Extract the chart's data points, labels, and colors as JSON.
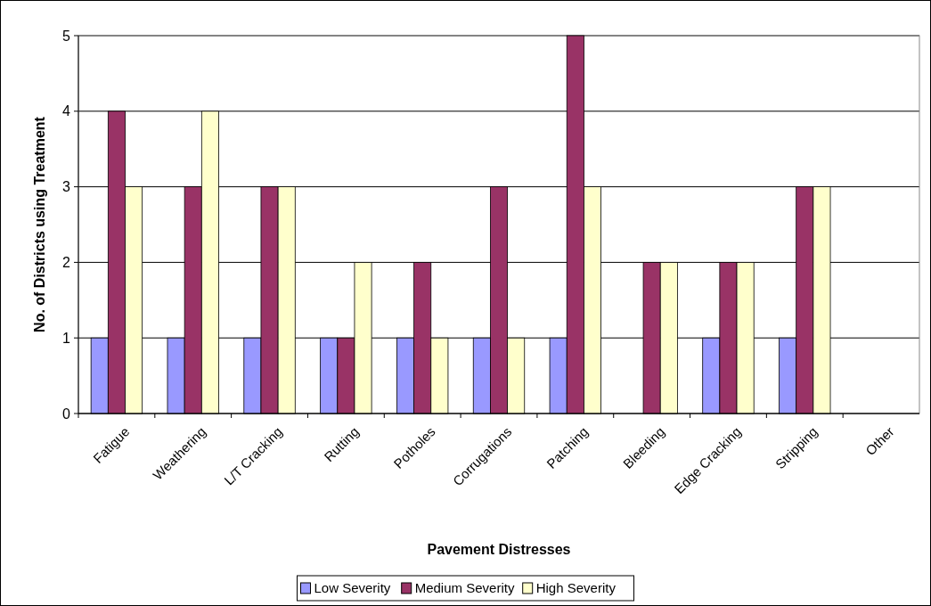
{
  "chart_data": {
    "type": "bar",
    "xlabel": "Pavement Distresses",
    "ylabel": "No. of Districts using Treatment",
    "categories": [
      "Fatigue",
      "Weathering",
      "L/T Cracking",
      "Rutting",
      "Potholes",
      "Corrugations",
      "Patching",
      "Bleeding",
      "Edge Cracking",
      "Stripping",
      "Other"
    ],
    "series": [
      {
        "name": "Low Severity",
        "color": "#9999ff",
        "values": [
          1,
          1,
          1,
          1,
          1,
          1,
          1,
          0,
          1,
          1,
          0
        ]
      },
      {
        "name": "Medium Severity",
        "color": "#993366",
        "values": [
          4,
          3,
          3,
          1,
          2,
          3,
          5,
          2,
          2,
          3,
          0
        ]
      },
      {
        "name": "High Severity",
        "color": "#ffffcc",
        "values": [
          3,
          4,
          3,
          2,
          1,
          1,
          3,
          2,
          2,
          3,
          0
        ]
      }
    ],
    "ylim": [
      0,
      5
    ],
    "yticks": [
      0,
      1,
      2,
      3,
      4,
      5
    ],
    "grid": "y",
    "legend": "bottom"
  }
}
